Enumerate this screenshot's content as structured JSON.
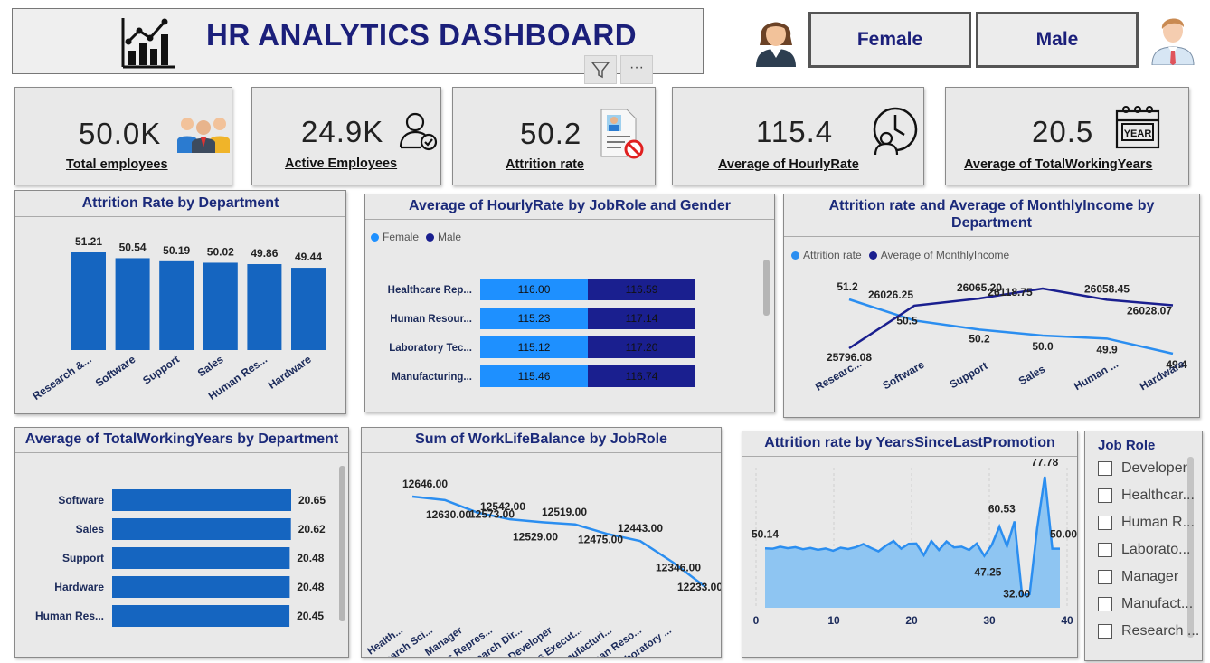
{
  "header": {
    "title": "HR ANALYTICS DASHBOARD",
    "more": "···"
  },
  "gender_buttons": {
    "female": "Female",
    "male": "Male"
  },
  "kpis": [
    {
      "value": "50.0K",
      "label": "Total employees",
      "icon": "employees-group-icon"
    },
    {
      "value": "24.9K",
      "label": "Active Employees",
      "icon": "user-check-icon"
    },
    {
      "value": "50.2",
      "label": "Attrition rate",
      "icon": "id-card-blocked-icon"
    },
    {
      "value": "115.4",
      "label": "Average of HourlyRate",
      "icon": "clock-person-icon"
    },
    {
      "value": "20.5",
      "label": "Average of TotalWorkingYears",
      "icon": "calendar-year-icon"
    }
  ],
  "calendar_text": "YEAR",
  "colors": {
    "bar_blue": "#1565c0",
    "light_blue": "#1e90ff",
    "navy": "#1a1f8f",
    "area_fill": "#8ec5f2",
    "line_blue": "#2b8ef0"
  },
  "charts": {
    "attrition_dept": {
      "title": "Attrition Rate by Department"
    },
    "hourly_role": {
      "title": "Average of HourlyRate by JobRole and Gender",
      "legend": [
        "Female",
        "Male"
      ]
    },
    "attr_income": {
      "title_line1": "Attrition rate and Average of MonthlyIncome by",
      "title_line2": "Department",
      "legend": [
        "Attrition rate",
        "Average of MonthlyIncome"
      ]
    },
    "working_years": {
      "title": "Average of TotalWorkingYears by Department"
    },
    "worklife": {
      "title": "Sum of WorkLifeBalance by JobRole"
    },
    "promotion": {
      "title": "Attrition rate by YearsSinceLastPromotion"
    }
  },
  "slicer": {
    "title": "Job Role",
    "items": [
      "Developer",
      "Healthcar...",
      "Human R...",
      "Laborato...",
      "Manager",
      "Manufact...",
      "Research ..."
    ]
  },
  "chart_data": [
    {
      "type": "bar",
      "title": "Attrition Rate by Department",
      "categories": [
        "Research &...",
        "Software",
        "Support",
        "Sales",
        "Human Res...",
        "Hardware"
      ],
      "values": [
        51.21,
        50.54,
        50.19,
        50.02,
        49.86,
        49.44
      ],
      "labels": [
        "51.21",
        "50.54",
        "50.19",
        "50.02",
        "49.86",
        "49.44"
      ]
    },
    {
      "type": "bar",
      "orientation": "horizontal-stacked",
      "title": "Average of HourlyRate by JobRole and Gender",
      "categories": [
        "Healthcare Rep...",
        "Human Resour...",
        "Laboratory Tec...",
        "Manufacturing..."
      ],
      "series": [
        {
          "name": "Female",
          "values": [
            116.0,
            115.23,
            115.12,
            115.46
          ],
          "labels": [
            "116.00",
            "115.23",
            "115.12",
            "115.46"
          ]
        },
        {
          "name": "Male",
          "values": [
            116.59,
            117.14,
            117.2,
            116.74
          ],
          "labels": [
            "116.59",
            "117.14",
            "117.20",
            "116.74"
          ]
        }
      ]
    },
    {
      "type": "line",
      "title": "Attrition rate and Average of MonthlyIncome by Department",
      "categories": [
        "Researc...",
        "Software",
        "Support",
        "Sales",
        "Human ...",
        "Hardware"
      ],
      "series": [
        {
          "name": "Attrition rate",
          "values": [
            51.2,
            50.5,
            50.2,
            50.0,
            49.9,
            49.4
          ],
          "labels": [
            "51.2",
            "50.5",
            "50.2",
            "50.0",
            "49.9",
            "49.4"
          ]
        },
        {
          "name": "Average of MonthlyIncome",
          "values": [
            25796.08,
            26026.25,
            26065.2,
            26118.75,
            26058.45,
            26028.07
          ],
          "labels": [
            "25796.08",
            "26026.25",
            "26065.20",
            "26118.75",
            "26058.45",
            "26028.07"
          ]
        }
      ]
    },
    {
      "type": "bar",
      "orientation": "horizontal",
      "title": "Average of TotalWorkingYears by Department",
      "categories": [
        "Software",
        "Sales",
        "Support",
        "Hardware",
        "Human Res..."
      ],
      "values": [
        20.65,
        20.62,
        20.48,
        20.48,
        20.45
      ],
      "labels": [
        "20.65",
        "20.62",
        "20.48",
        "20.48",
        "20.45"
      ]
    },
    {
      "type": "line",
      "title": "Sum of WorkLifeBalance by JobRole",
      "categories": [
        "Health...",
        "Research Sci...",
        "Manager",
        "Sales Repres...",
        "Research Dir...",
        "Developer",
        "Sales Execut...",
        "Manufacturi...",
        "Human Reso...",
        "Laboratory ..."
      ],
      "values": [
        12646.0,
        12630.0,
        12573.0,
        12542.0,
        12529.0,
        12519.0,
        12475.0,
        12443.0,
        12346.0,
        12233.0
      ],
      "labels": [
        "12646.00",
        "12630.00",
        "12573.00",
        "12542.00",
        "12529.00",
        "12519.00",
        "12475.00",
        "12443.00",
        "12346.00",
        "12233.00"
      ]
    },
    {
      "type": "area",
      "title": "Attrition rate by YearsSinceLastPromotion",
      "x": [
        0,
        1,
        2,
        3,
        4,
        5,
        6,
        7,
        8,
        9,
        10,
        11,
        12,
        13,
        14,
        15,
        16,
        17,
        18,
        19,
        20,
        21,
        22,
        23,
        24,
        25,
        26,
        27,
        28,
        29,
        30,
        31,
        32,
        33,
        34,
        35,
        36,
        37,
        38,
        39
      ],
      "values": [
        50.14,
        50.0,
        50.8,
        50.2,
        50.6,
        49.8,
        50.3,
        49.6,
        50.1,
        49.2,
        50.4,
        49.9,
        50.6,
        51.8,
        50.3,
        49.0,
        51.2,
        53.0,
        50.0,
        51.9,
        52.0,
        47.5,
        53.0,
        49.5,
        52.8,
        50.5,
        50.8,
        49.5,
        52.0,
        47.25,
        51.5,
        58.5,
        51.0,
        60.53,
        32.0,
        32.5,
        58.0,
        77.78,
        50.0,
        50.0
      ],
      "labels": {
        "0": "50.14",
        "29": "47.25",
        "33": "60.53",
        "34": "32.00",
        "37": "77.78",
        "39": "50.00"
      },
      "xticks": [
        0,
        10,
        20,
        30,
        40
      ]
    }
  ]
}
